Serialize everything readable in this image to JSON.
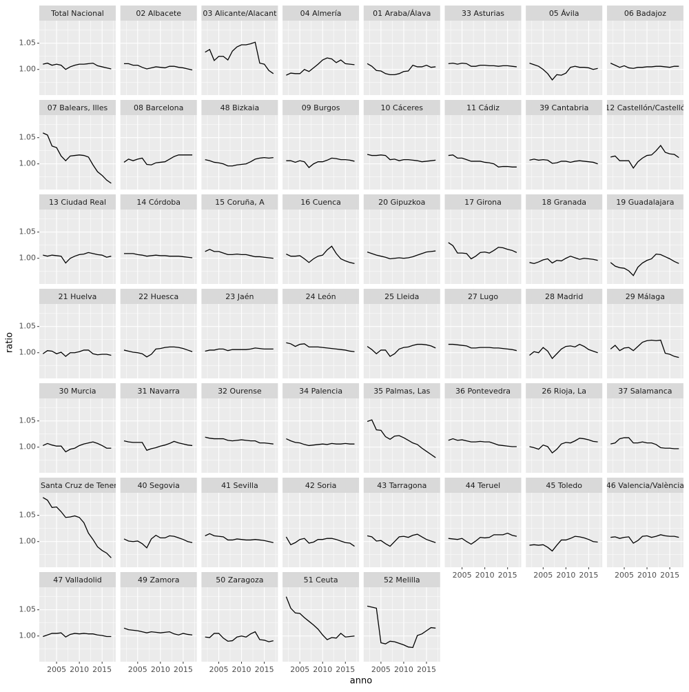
{
  "chart_data": {
    "type": "line",
    "xlabel": "anno",
    "ylabel": "ratio",
    "color": "#000000",
    "grid": true,
    "x": [
      2002,
      2003,
      2004,
      2005,
      2006,
      2007,
      2008,
      2009,
      2010,
      2011,
      2012,
      2013,
      2014,
      2015,
      2016,
      2017
    ],
    "xlim": [
      2001.2,
      2018.0
    ],
    "xticks": [
      2005,
      2010,
      2015
    ],
    "ylim": [
      0.951,
      1.093
    ],
    "yticks": [
      {
        "value": 1.0,
        "label": "1.00"
      },
      {
        "value": 1.05,
        "label": "1.05"
      }
    ],
    "series": [
      {
        "name": "Total Nacional",
        "values": [
          1.01,
          1.012,
          1.008,
          1.01,
          1.008,
          1.0,
          1.005,
          1.008,
          1.01,
          1.01,
          1.011,
          1.012,
          1.007,
          1.005,
          1.003,
          1.001
        ]
      },
      {
        "name": "02 Albacete",
        "values": [
          1.011,
          1.011,
          1.008,
          1.008,
          1.004,
          1.001,
          1.003,
          1.005,
          1.004,
          1.003,
          1.006,
          1.006,
          1.004,
          1.003,
          1.001,
          0.999
        ]
      },
      {
        "name": "03 Alicante/Alacant",
        "values": [
          1.033,
          1.038,
          1.017,
          1.025,
          1.025,
          1.018,
          1.035,
          1.043,
          1.047,
          1.047,
          1.049,
          1.052,
          1.012,
          1.01,
          0.998,
          0.992
        ]
      },
      {
        "name": "04 Almería",
        "values": [
          0.989,
          0.993,
          0.992,
          0.992,
          1.0,
          0.996,
          1.003,
          1.01,
          1.018,
          1.022,
          1.02,
          1.013,
          1.018,
          1.011,
          1.01,
          1.009
        ]
      },
      {
        "name": "01 Araba/Álava",
        "values": [
          1.011,
          1.006,
          0.998,
          0.997,
          0.992,
          0.99,
          0.99,
          0.992,
          0.996,
          0.997,
          1.008,
          1.005,
          1.005,
          1.008,
          1.004,
          1.005
        ]
      },
      {
        "name": "33 Asturias",
        "values": [
          1.011,
          1.012,
          1.01,
          1.012,
          1.011,
          1.006,
          1.006,
          1.008,
          1.008,
          1.007,
          1.007,
          1.006,
          1.007,
          1.007,
          1.006,
          1.005
        ]
      },
      {
        "name": "05 Ávila",
        "values": [
          1.012,
          1.009,
          1.006,
          1.0,
          0.992,
          0.98,
          0.99,
          0.989,
          0.993,
          1.004,
          1.006,
          1.004,
          1.004,
          1.003,
          1.0,
          1.002
        ]
      },
      {
        "name": "06 Badajoz",
        "values": [
          1.012,
          1.008,
          1.004,
          1.007,
          1.003,
          1.002,
          1.004,
          1.004,
          1.005,
          1.005,
          1.006,
          1.006,
          1.005,
          1.004,
          1.006,
          1.006
        ]
      },
      {
        "name": "07 Balears, Illes",
        "values": [
          1.059,
          1.055,
          1.034,
          1.031,
          1.015,
          1.006,
          1.015,
          1.016,
          1.017,
          1.016,
          1.013,
          0.998,
          0.985,
          0.978,
          0.969,
          0.963
        ]
      },
      {
        "name": "08 Barcelona",
        "values": [
          1.003,
          1.009,
          1.006,
          1.009,
          1.011,
          0.999,
          0.998,
          1.002,
          1.003,
          1.004,
          1.009,
          1.014,
          1.017,
          1.017,
          1.017,
          1.017
        ]
      },
      {
        "name": "48 Bizkaia",
        "values": [
          1.008,
          1.006,
          1.003,
          1.002,
          1.0,
          0.996,
          0.996,
          0.998,
          0.999,
          1.0,
          1.004,
          1.009,
          1.011,
          1.012,
          1.011,
          1.012
        ]
      },
      {
        "name": "09 Burgos",
        "values": [
          1.006,
          1.006,
          1.003,
          1.006,
          1.004,
          0.993,
          1.0,
          1.004,
          1.004,
          1.007,
          1.011,
          1.01,
          1.008,
          1.008,
          1.007,
          1.005
        ]
      },
      {
        "name": "10 Cáceres",
        "values": [
          1.018,
          1.016,
          1.016,
          1.017,
          1.016,
          1.008,
          1.009,
          1.006,
          1.008,
          1.008,
          1.007,
          1.006,
          1.004,
          1.005,
          1.006,
          1.007
        ]
      },
      {
        "name": "11 Cádiz",
        "values": [
          1.016,
          1.017,
          1.011,
          1.011,
          1.008,
          1.005,
          1.005,
          1.005,
          1.003,
          1.002,
          1.0,
          0.994,
          0.995,
          0.995,
          0.994,
          0.994
        ]
      },
      {
        "name": "39 Cantabria",
        "values": [
          1.007,
          1.009,
          1.007,
          1.008,
          1.007,
          1.001,
          1.002,
          1.005,
          1.005,
          1.003,
          1.005,
          1.006,
          1.005,
          1.004,
          1.003,
          1.0
        ]
      },
      {
        "name": "12 Castellón/Castelló",
        "values": [
          1.013,
          1.015,
          1.006,
          1.006,
          1.006,
          0.992,
          1.004,
          1.011,
          1.016,
          1.017,
          1.025,
          1.035,
          1.022,
          1.019,
          1.018,
          1.012
        ]
      },
      {
        "name": "13 Ciudad Real",
        "values": [
          1.006,
          1.004,
          1.006,
          1.005,
          1.004,
          0.991,
          1.0,
          1.004,
          1.007,
          1.008,
          1.011,
          1.009,
          1.007,
          1.006,
          1.002,
          1.004
        ]
      },
      {
        "name": "14 Córdoba",
        "values": [
          1.009,
          1.009,
          1.009,
          1.007,
          1.006,
          1.004,
          1.005,
          1.006,
          1.005,
          1.005,
          1.004,
          1.004,
          1.004,
          1.003,
          1.002,
          1.001
        ]
      },
      {
        "name": "15 Coruña, A",
        "values": [
          1.013,
          1.017,
          1.013,
          1.013,
          1.01,
          1.007,
          1.007,
          1.008,
          1.007,
          1.007,
          1.005,
          1.003,
          1.003,
          1.002,
          1.001,
          1.0
        ]
      },
      {
        "name": "16 Cuenca",
        "values": [
          1.008,
          1.004,
          1.004,
          1.005,
          0.999,
          0.992,
          0.999,
          1.004,
          1.006,
          1.016,
          1.023,
          1.009,
          0.999,
          0.995,
          0.992,
          0.99
        ]
      },
      {
        "name": "20 Gipuzkoa",
        "values": [
          1.012,
          1.009,
          1.006,
          1.004,
          1.002,
          0.999,
          1.0,
          1.001,
          1.0,
          1.001,
          1.003,
          1.006,
          1.009,
          1.012,
          1.013,
          1.014
        ]
      },
      {
        "name": "17 Girona",
        "values": [
          1.03,
          1.024,
          1.01,
          1.01,
          1.009,
          0.999,
          1.004,
          1.011,
          1.012,
          1.01,
          1.015,
          1.021,
          1.02,
          1.017,
          1.015,
          1.011
        ]
      },
      {
        "name": "18 Granada",
        "values": [
          0.992,
          0.99,
          0.993,
          0.997,
          0.999,
          0.991,
          0.996,
          0.995,
          1.0,
          1.004,
          1.001,
          0.998,
          1.0,
          0.999,
          0.998,
          0.996
        ]
      },
      {
        "name": "19 Guadalajara",
        "values": [
          0.992,
          0.985,
          0.982,
          0.981,
          0.976,
          0.967,
          0.983,
          0.991,
          0.996,
          0.999,
          1.008,
          1.007,
          1.003,
          0.999,
          0.994,
          0.99
        ]
      },
      {
        "name": "21 Huelva",
        "values": [
          0.998,
          1.004,
          1.003,
          0.998,
          1.001,
          0.993,
          1.0,
          1.0,
          1.002,
          1.005,
          1.005,
          0.998,
          0.996,
          0.997,
          0.997,
          0.995
        ]
      },
      {
        "name": "22 Huesca",
        "values": [
          1.005,
          1.003,
          1.001,
          1.0,
          0.998,
          0.992,
          0.997,
          1.007,
          1.008,
          1.01,
          1.011,
          1.011,
          1.01,
          1.008,
          1.005,
          1.002
        ]
      },
      {
        "name": "23 Jaén",
        "values": [
          1.003,
          1.005,
          1.005,
          1.007,
          1.007,
          1.004,
          1.006,
          1.006,
          1.006,
          1.006,
          1.007,
          1.009,
          1.008,
          1.007,
          1.007,
          1.007
        ]
      },
      {
        "name": "24 León",
        "values": [
          1.019,
          1.017,
          1.012,
          1.016,
          1.017,
          1.011,
          1.011,
          1.011,
          1.01,
          1.009,
          1.008,
          1.007,
          1.006,
          1.005,
          1.003,
          1.002
        ]
      },
      {
        "name": "25 Lleida",
        "values": [
          1.012,
          1.006,
          0.998,
          1.005,
          1.005,
          0.993,
          0.998,
          1.007,
          1.01,
          1.011,
          1.014,
          1.016,
          1.016,
          1.015,
          1.013,
          1.009
        ]
      },
      {
        "name": "27 Lugo",
        "values": [
          1.016,
          1.016,
          1.015,
          1.014,
          1.013,
          1.009,
          1.009,
          1.01,
          1.01,
          1.01,
          1.009,
          1.009,
          1.008,
          1.007,
          1.006,
          1.004
        ]
      },
      {
        "name": "28 Madrid",
        "values": [
          0.995,
          1.002,
          1.0,
          1.01,
          1.003,
          0.989,
          0.998,
          1.007,
          1.012,
          1.013,
          1.011,
          1.016,
          1.012,
          1.006,
          1.003,
          1.0
        ]
      },
      {
        "name": "29 Málaga",
        "values": [
          1.007,
          1.014,
          1.004,
          1.009,
          1.01,
          1.004,
          1.012,
          1.02,
          1.023,
          1.024,
          1.023,
          1.024,
          0.999,
          0.997,
          0.993,
          0.991
        ]
      },
      {
        "name": "30 Murcia",
        "values": [
          1.003,
          1.007,
          1.004,
          1.002,
          1.002,
          0.991,
          0.996,
          0.998,
          1.003,
          1.006,
          1.008,
          1.01,
          1.007,
          1.003,
          0.998,
          0.998
        ]
      },
      {
        "name": "31 Navarra",
        "values": [
          1.012,
          1.01,
          1.009,
          1.009,
          1.009,
          0.994,
          0.997,
          0.999,
          1.002,
          1.004,
          1.007,
          1.011,
          1.008,
          1.006,
          1.004,
          1.003
        ]
      },
      {
        "name": "32 Ourense",
        "values": [
          1.019,
          1.017,
          1.016,
          1.016,
          1.016,
          1.013,
          1.012,
          1.013,
          1.014,
          1.013,
          1.012,
          1.012,
          1.008,
          1.008,
          1.007,
          1.006
        ]
      },
      {
        "name": "34 Palencia",
        "values": [
          1.016,
          1.012,
          1.009,
          1.008,
          1.005,
          1.003,
          1.004,
          1.005,
          1.006,
          1.005,
          1.007,
          1.006,
          1.006,
          1.007,
          1.006,
          1.006
        ]
      },
      {
        "name": "35 Palmas, Las",
        "values": [
          1.049,
          1.052,
          1.033,
          1.032,
          1.02,
          1.015,
          1.021,
          1.022,
          1.018,
          1.013,
          1.008,
          1.005,
          0.998,
          0.992,
          0.986,
          0.98
        ]
      },
      {
        "name": "36 Pontevedra",
        "values": [
          1.013,
          1.016,
          1.013,
          1.014,
          1.012,
          1.01,
          1.01,
          1.011,
          1.01,
          1.01,
          1.007,
          1.004,
          1.003,
          1.002,
          1.001,
          1.001
        ]
      },
      {
        "name": "26 Rioja, La",
        "values": [
          1.001,
          0.999,
          0.996,
          1.004,
          1.001,
          0.989,
          0.996,
          1.006,
          1.009,
          1.008,
          1.012,
          1.017,
          1.016,
          1.014,
          1.011,
          1.01
        ]
      },
      {
        "name": "37 Salamanca",
        "values": [
          1.006,
          1.008,
          1.016,
          1.018,
          1.018,
          1.008,
          1.008,
          1.01,
          1.008,
          1.008,
          1.005,
          0.999,
          0.998,
          0.998,
          0.997,
          0.997
        ]
      },
      {
        "name": "38 Santa Cruz de Tenerife",
        "values": [
          1.084,
          1.079,
          1.065,
          1.066,
          1.057,
          1.046,
          1.047,
          1.049,
          1.046,
          1.036,
          1.016,
          1.004,
          0.99,
          0.983,
          0.978,
          0.969
        ]
      },
      {
        "name": "40 Segovia",
        "values": [
          1.005,
          1.001,
          1.0,
          1.001,
          0.996,
          0.988,
          1.005,
          1.012,
          1.007,
          1.007,
          1.011,
          1.01,
          1.007,
          1.004,
          1.0,
          0.998
        ]
      },
      {
        "name": "41 Sevilla",
        "values": [
          1.011,
          1.015,
          1.011,
          1.01,
          1.009,
          1.003,
          1.003,
          1.005,
          1.004,
          1.003,
          1.003,
          1.004,
          1.003,
          1.002,
          1.0,
          0.998
        ]
      },
      {
        "name": "42 Soria",
        "values": [
          1.009,
          0.994,
          0.998,
          1.004,
          1.006,
          0.997,
          0.999,
          1.004,
          1.004,
          1.006,
          1.006,
          1.004,
          1.001,
          0.998,
          0.997,
          0.991
        ]
      },
      {
        "name": "43 Tarragona",
        "values": [
          1.011,
          1.009,
          1.001,
          1.002,
          0.996,
          0.991,
          1.0,
          1.009,
          1.01,
          1.008,
          1.012,
          1.014,
          1.009,
          1.004,
          1.001,
          0.998
        ]
      },
      {
        "name": "44 Teruel",
        "values": [
          1.006,
          1.005,
          1.004,
          1.006,
          1.0,
          0.995,
          1.001,
          1.008,
          1.007,
          1.008,
          1.013,
          1.013,
          1.013,
          1.016,
          1.012,
          1.01
        ]
      },
      {
        "name": "45 Toledo",
        "values": [
          0.993,
          0.994,
          0.993,
          0.994,
          0.989,
          0.982,
          0.993,
          1.003,
          1.003,
          1.006,
          1.01,
          1.009,
          1.007,
          1.004,
          1.0,
          0.999
        ]
      },
      {
        "name": "46 Valencia/València",
        "values": [
          1.008,
          1.009,
          1.006,
          1.008,
          1.009,
          0.997,
          1.002,
          1.01,
          1.011,
          1.008,
          1.01,
          1.013,
          1.011,
          1.01,
          1.01,
          1.008
        ]
      },
      {
        "name": "47 Valladolid",
        "values": [
          0.999,
          1.002,
          1.005,
          1.005,
          1.006,
          0.998,
          1.003,
          1.005,
          1.004,
          1.005,
          1.004,
          1.004,
          1.002,
          1.001,
          0.999,
          0.999
        ]
      },
      {
        "name": "49 Zamora",
        "values": [
          1.015,
          1.012,
          1.011,
          1.01,
          1.008,
          1.006,
          1.008,
          1.007,
          1.006,
          1.007,
          1.008,
          1.004,
          1.002,
          1.005,
          1.003,
          1.002
        ]
      },
      {
        "name": "50 Zaragoza",
        "values": [
          0.998,
          0.997,
          1.005,
          1.005,
          0.996,
          0.99,
          0.991,
          0.998,
          1.0,
          0.998,
          1.004,
          1.008,
          0.993,
          0.992,
          0.989,
          0.991
        ]
      },
      {
        "name": "51 Ceuta",
        "values": [
          1.075,
          1.053,
          1.044,
          1.043,
          1.035,
          1.028,
          1.021,
          1.013,
          1.002,
          0.993,
          0.997,
          0.996,
          1.005,
          0.998,
          0.999,
          1.0
        ]
      },
      {
        "name": "52 Melilla",
        "values": [
          1.057,
          1.055,
          1.053,
          0.987,
          0.985,
          0.99,
          0.989,
          0.986,
          0.983,
          0.979,
          0.978,
          1.001,
          1.004,
          1.01,
          1.016,
          1.015
        ]
      }
    ]
  }
}
